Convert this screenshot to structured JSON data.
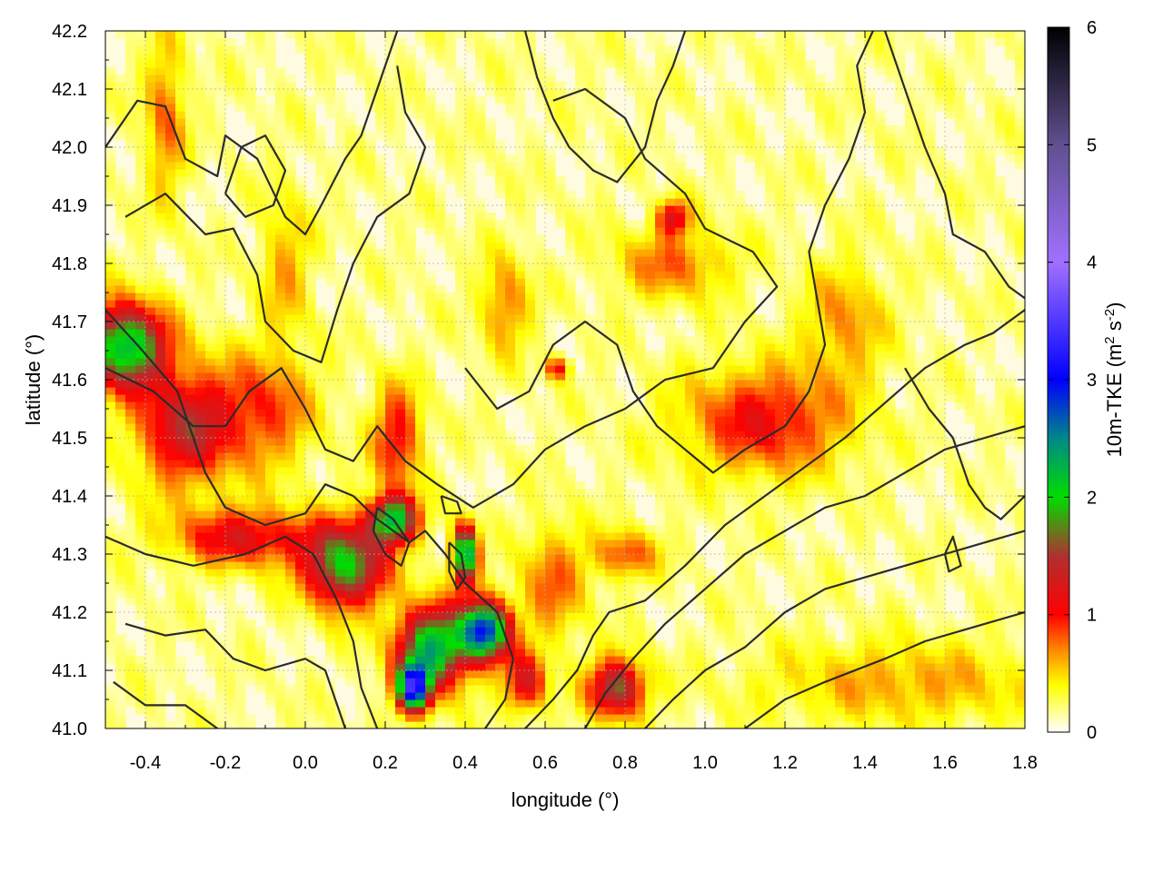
{
  "chart_data": {
    "type": "heatmap",
    "title": "",
    "xlabel": "longitude (°)",
    "ylabel": "latitude (°)",
    "colorbar": {
      "label_main": "10m-TKE (m",
      "label_sup1": "2",
      "label_mid": " s",
      "label_sup2": "-2",
      "label_end": ")",
      "range": [
        0,
        6
      ],
      "ticks": [
        "0",
        "1",
        "2",
        "3",
        "4",
        "5",
        "6"
      ],
      "palette": [
        {
          "value": 0.0,
          "color": "#ffffff"
        },
        {
          "value": 0.4,
          "color": "#ffff00"
        },
        {
          "value": 0.7,
          "color": "#ff8800"
        },
        {
          "value": 1.0,
          "color": "#ff0000"
        },
        {
          "value": 1.5,
          "color": "#b03030"
        },
        {
          "value": 2.0,
          "color": "#00dd00"
        },
        {
          "value": 2.5,
          "color": "#008888"
        },
        {
          "value": 3.0,
          "color": "#0000ff"
        },
        {
          "value": 4.0,
          "color": "#a070ff"
        },
        {
          "value": 5.0,
          "color": "#605090"
        },
        {
          "value": 6.0,
          "color": "#000000"
        }
      ]
    },
    "xlim": [
      -0.5,
      1.8
    ],
    "ylim": [
      41.0,
      42.2
    ],
    "x_ticks": [
      "-0.4",
      "-0.2",
      "0.0",
      "0.2",
      "0.4",
      "0.6",
      "0.8",
      "1.0",
      "1.2",
      "1.4",
      "1.6",
      "1.8"
    ],
    "x_tick_values": [
      -0.4,
      -0.2,
      0.0,
      0.2,
      0.4,
      0.6,
      0.8,
      1.0,
      1.2,
      1.4,
      1.6,
      1.8
    ],
    "y_ticks": [
      "41.0",
      "41.1",
      "41.2",
      "41.3",
      "41.4",
      "41.5",
      "41.6",
      "41.7",
      "41.8",
      "41.9",
      "42.0",
      "42.1",
      "42.2"
    ],
    "y_tick_values": [
      41.0,
      41.1,
      41.2,
      41.3,
      41.4,
      41.5,
      41.6,
      41.7,
      41.8,
      41.9,
      42.0,
      42.1,
      42.2
    ],
    "grid": true,
    "hotspots": [
      {
        "lon": -0.45,
        "lat": 41.66,
        "sx": 0.1,
        "sy": 0.07,
        "tke": 2.1
      },
      {
        "lon": -0.3,
        "lat": 41.52,
        "sx": 0.12,
        "sy": 0.1,
        "tke": 1.2
      },
      {
        "lon": -0.15,
        "lat": 41.33,
        "sx": 0.18,
        "sy": 0.05,
        "tke": 1.0
      },
      {
        "lon": 0.1,
        "lat": 41.28,
        "sx": 0.1,
        "sy": 0.07,
        "tke": 1.8
      },
      {
        "lon": 0.22,
        "lat": 41.36,
        "sx": 0.06,
        "sy": 0.04,
        "tke": 2.0
      },
      {
        "lon": 0.32,
        "lat": 41.14,
        "sx": 0.09,
        "sy": 0.07,
        "tke": 2.1
      },
      {
        "lon": 0.45,
        "lat": 41.17,
        "sx": 0.06,
        "sy": 0.05,
        "tke": 2.6
      },
      {
        "lon": 0.4,
        "lat": 41.3,
        "sx": 0.03,
        "sy": 0.05,
        "tke": 2.3
      },
      {
        "lon": 0.27,
        "lat": 41.07,
        "sx": 0.04,
        "sy": 0.04,
        "tke": 2.7
      },
      {
        "lon": 0.78,
        "lat": 41.07,
        "sx": 0.07,
        "sy": 0.05,
        "tke": 1.5
      },
      {
        "lon": 0.23,
        "lat": 41.5,
        "sx": 0.06,
        "sy": 0.09,
        "tke": 0.9
      },
      {
        "lon": -0.1,
        "lat": 41.55,
        "sx": 0.12,
        "sy": 0.1,
        "tke": 0.7
      },
      {
        "lon": 1.15,
        "lat": 41.53,
        "sx": 0.2,
        "sy": 0.09,
        "tke": 0.9
      },
      {
        "lon": 0.92,
        "lat": 41.88,
        "sx": 0.04,
        "sy": 0.03,
        "tke": 1.0
      },
      {
        "lon": 0.92,
        "lat": 41.8,
        "sx": 0.14,
        "sy": 0.06,
        "tke": 0.6
      },
      {
        "lon": -0.35,
        "lat": 42.05,
        "sx": 0.05,
        "sy": 0.14,
        "tke": 0.6
      },
      {
        "lon": 0.5,
        "lat": 41.73,
        "sx": 0.06,
        "sy": 0.08,
        "tke": 0.6
      },
      {
        "lon": 0.63,
        "lat": 41.62,
        "sx": 0.03,
        "sy": 0.02,
        "tke": 0.9
      },
      {
        "lon": 0.8,
        "lat": 41.3,
        "sx": 0.08,
        "sy": 0.04,
        "tke": 0.7
      },
      {
        "lon": 1.35,
        "lat": 41.7,
        "sx": 0.1,
        "sy": 0.1,
        "tke": 0.5
      },
      {
        "lon": 1.5,
        "lat": 41.08,
        "sx": 0.35,
        "sy": 0.07,
        "tke": 0.45
      },
      {
        "lon": -0.05,
        "lat": 41.8,
        "sx": 0.06,
        "sy": 0.12,
        "tke": 0.45
      },
      {
        "lon": 0.62,
        "lat": 41.25,
        "sx": 0.08,
        "sy": 0.1,
        "tke": 0.6
      },
      {
        "lon": 0.55,
        "lat": 41.08,
        "sx": 0.05,
        "sy": 0.05,
        "tke": 1.1
      }
    ],
    "contours": [
      [
        [
          -0.5,
          42.0
        ],
        [
          -0.42,
          42.08
        ],
        [
          -0.35,
          42.07
        ],
        [
          -0.3,
          41.98
        ],
        [
          -0.22,
          41.95
        ],
        [
          -0.2,
          42.02
        ],
        [
          -0.12,
          41.98
        ],
        [
          -0.05,
          41.88
        ],
        [
          0.0,
          41.85
        ],
        [
          0.04,
          41.9
        ],
        [
          0.1,
          41.98
        ],
        [
          0.14,
          42.02
        ],
        [
          0.18,
          42.1
        ],
        [
          0.2,
          42.14
        ],
        [
          0.23,
          42.2
        ]
      ],
      [
        [
          -0.45,
          41.88
        ],
        [
          -0.35,
          41.92
        ],
        [
          -0.25,
          41.85
        ],
        [
          -0.18,
          41.86
        ],
        [
          -0.12,
          41.78
        ],
        [
          -0.1,
          41.7
        ],
        [
          -0.03,
          41.65
        ],
        [
          0.04,
          41.63
        ],
        [
          0.08,
          41.72
        ],
        [
          0.12,
          41.8
        ],
        [
          0.18,
          41.88
        ],
        [
          0.26,
          41.92
        ],
        [
          0.3,
          42.0
        ],
        [
          0.25,
          42.06
        ],
        [
          0.23,
          42.14
        ]
      ],
      [
        [
          -0.5,
          41.62
        ],
        [
          -0.38,
          41.58
        ],
        [
          -0.28,
          41.52
        ],
        [
          -0.2,
          41.52
        ],
        [
          -0.14,
          41.58
        ],
        [
          -0.06,
          41.62
        ],
        [
          0.0,
          41.55
        ],
        [
          0.05,
          41.48
        ],
        [
          0.12,
          41.46
        ],
        [
          0.18,
          41.52
        ],
        [
          0.25,
          41.46
        ],
        [
          0.33,
          41.42
        ],
        [
          0.42,
          41.38
        ],
        [
          0.52,
          41.42
        ],
        [
          0.6,
          41.48
        ],
        [
          0.7,
          41.52
        ],
        [
          0.8,
          41.55
        ],
        [
          0.9,
          41.6
        ],
        [
          1.02,
          41.62
        ],
        [
          1.1,
          41.7
        ],
        [
          1.18,
          41.76
        ],
        [
          1.12,
          41.82
        ],
        [
          1.0,
          41.86
        ],
        [
          0.95,
          41.92
        ],
        [
          0.85,
          41.98
        ],
        [
          0.8,
          42.05
        ],
        [
          0.7,
          42.1
        ],
        [
          0.62,
          42.08
        ]
      ],
      [
        [
          -0.5,
          41.72
        ],
        [
          -0.42,
          41.66
        ],
        [
          -0.32,
          41.58
        ],
        [
          -0.25,
          41.44
        ],
        [
          -0.2,
          41.38
        ],
        [
          -0.1,
          41.35
        ],
        [
          0.0,
          41.37
        ],
        [
          0.05,
          41.42
        ],
        [
          0.12,
          41.4
        ],
        [
          0.18,
          41.36
        ],
        [
          0.26,
          41.32
        ],
        [
          0.3,
          41.34
        ],
        [
          0.35,
          41.3
        ],
        [
          0.4,
          41.25
        ],
        [
          0.48,
          41.2
        ],
        [
          0.52,
          41.12
        ],
        [
          0.5,
          41.05
        ],
        [
          0.45,
          41.0
        ]
      ],
      [
        [
          -0.5,
          41.33
        ],
        [
          -0.4,
          41.3
        ],
        [
          -0.28,
          41.28
        ],
        [
          -0.15,
          41.3
        ],
        [
          -0.05,
          41.33
        ],
        [
          0.02,
          41.3
        ],
        [
          0.08,
          41.22
        ],
        [
          0.12,
          41.15
        ],
        [
          0.14,
          41.07
        ],
        [
          0.18,
          41.0
        ]
      ],
      [
        [
          -0.45,
          41.18
        ],
        [
          -0.35,
          41.16
        ],
        [
          -0.25,
          41.17
        ],
        [
          -0.18,
          41.12
        ],
        [
          -0.1,
          41.1
        ],
        [
          0.0,
          41.12
        ],
        [
          0.05,
          41.1
        ],
        [
          0.08,
          41.04
        ],
        [
          0.1,
          41.0
        ]
      ],
      [
        [
          -0.48,
          41.08
        ],
        [
          -0.4,
          41.04
        ],
        [
          -0.3,
          41.04
        ],
        [
          -0.22,
          41.0
        ]
      ],
      [
        [
          0.55,
          41.0
        ],
        [
          0.62,
          41.05
        ],
        [
          0.68,
          41.1
        ],
        [
          0.72,
          41.16
        ],
        [
          0.76,
          41.2
        ],
        [
          0.85,
          41.22
        ],
        [
          0.95,
          41.28
        ],
        [
          1.05,
          41.35
        ],
        [
          1.15,
          41.4
        ],
        [
          1.25,
          41.45
        ],
        [
          1.35,
          41.5
        ],
        [
          1.45,
          41.56
        ],
        [
          1.55,
          41.62
        ],
        [
          1.65,
          41.66
        ],
        [
          1.72,
          41.68
        ],
        [
          1.8,
          41.72
        ]
      ],
      [
        [
          0.7,
          41.0
        ],
        [
          0.75,
          41.06
        ],
        [
          0.82,
          41.12
        ],
        [
          0.9,
          41.18
        ],
        [
          1.0,
          41.24
        ],
        [
          1.1,
          41.3
        ],
        [
          1.2,
          41.34
        ],
        [
          1.3,
          41.38
        ],
        [
          1.4,
          41.4
        ],
        [
          1.5,
          41.44
        ],
        [
          1.6,
          41.48
        ],
        [
          1.7,
          41.5
        ],
        [
          1.8,
          41.52
        ]
      ],
      [
        [
          0.85,
          41.0
        ],
        [
          0.92,
          41.05
        ],
        [
          1.0,
          41.1
        ],
        [
          1.1,
          41.14
        ],
        [
          1.2,
          41.2
        ],
        [
          1.3,
          41.24
        ],
        [
          1.4,
          41.26
        ],
        [
          1.5,
          41.28
        ],
        [
          1.6,
          41.3
        ],
        [
          1.7,
          41.32
        ],
        [
          1.8,
          41.34
        ]
      ],
      [
        [
          1.1,
          41.0
        ],
        [
          1.2,
          41.05
        ],
        [
          1.3,
          41.08
        ],
        [
          1.45,
          41.12
        ],
        [
          1.55,
          41.15
        ],
        [
          1.65,
          41.17
        ],
        [
          1.8,
          41.2
        ]
      ],
      [
        [
          0.4,
          41.62
        ],
        [
          0.48,
          41.55
        ],
        [
          0.56,
          41.58
        ],
        [
          0.62,
          41.66
        ],
        [
          0.7,
          41.7
        ],
        [
          0.78,
          41.66
        ],
        [
          0.82,
          41.58
        ],
        [
          0.88,
          41.52
        ],
        [
          0.95,
          41.48
        ],
        [
          1.02,
          41.44
        ],
        [
          1.1,
          41.48
        ],
        [
          1.2,
          41.52
        ],
        [
          1.26,
          41.58
        ],
        [
          1.3,
          41.66
        ],
        [
          1.28,
          41.74
        ],
        [
          1.26,
          41.82
        ],
        [
          1.3,
          41.9
        ],
        [
          1.36,
          41.98
        ],
        [
          1.4,
          42.06
        ],
        [
          1.38,
          42.14
        ],
        [
          1.42,
          42.2
        ]
      ],
      [
        [
          0.55,
          42.2
        ],
        [
          0.58,
          42.12
        ],
        [
          0.62,
          42.05
        ],
        [
          0.66,
          42.0
        ],
        [
          0.72,
          41.96
        ],
        [
          0.78,
          41.94
        ],
        [
          0.85,
          42.0
        ],
        [
          0.88,
          42.08
        ],
        [
          0.92,
          42.14
        ],
        [
          0.95,
          42.2
        ]
      ],
      [
        [
          1.45,
          42.2
        ],
        [
          1.5,
          42.1
        ],
        [
          1.55,
          42.0
        ],
        [
          1.6,
          41.92
        ],
        [
          1.62,
          41.85
        ],
        [
          1.7,
          41.82
        ],
        [
          1.76,
          41.76
        ],
        [
          1.8,
          41.74
        ]
      ],
      [
        [
          1.5,
          41.62
        ],
        [
          1.56,
          41.55
        ],
        [
          1.62,
          41.5
        ],
        [
          1.66,
          41.42
        ],
        [
          1.7,
          41.38
        ],
        [
          1.74,
          41.36
        ],
        [
          1.8,
          41.4
        ]
      ],
      [
        [
          -0.2,
          41.92
        ],
        [
          -0.15,
          41.88
        ],
        [
          -0.08,
          41.9
        ],
        [
          -0.05,
          41.96
        ],
        [
          -0.1,
          42.02
        ],
        [
          -0.16,
          42.0
        ],
        [
          -0.2,
          41.92
        ]
      ],
      [
        [
          0.18,
          41.38
        ],
        [
          0.22,
          41.36
        ],
        [
          0.26,
          41.32
        ],
        [
          0.24,
          41.28
        ],
        [
          0.2,
          41.3
        ],
        [
          0.17,
          41.34
        ],
        [
          0.18,
          41.38
        ]
      ],
      [
        [
          0.36,
          41.32
        ],
        [
          0.39,
          41.3
        ],
        [
          0.4,
          41.26
        ],
        [
          0.38,
          41.24
        ],
        [
          0.36,
          41.27
        ],
        [
          0.36,
          41.32
        ]
      ],
      [
        [
          0.34,
          41.4
        ],
        [
          0.38,
          41.39
        ],
        [
          0.39,
          41.37
        ],
        [
          0.35,
          41.37
        ],
        [
          0.34,
          41.4
        ]
      ],
      [
        [
          1.6,
          41.3
        ],
        [
          1.62,
          41.33
        ],
        [
          1.64,
          41.28
        ],
        [
          1.61,
          41.27
        ],
        [
          1.6,
          41.3
        ]
      ]
    ]
  }
}
